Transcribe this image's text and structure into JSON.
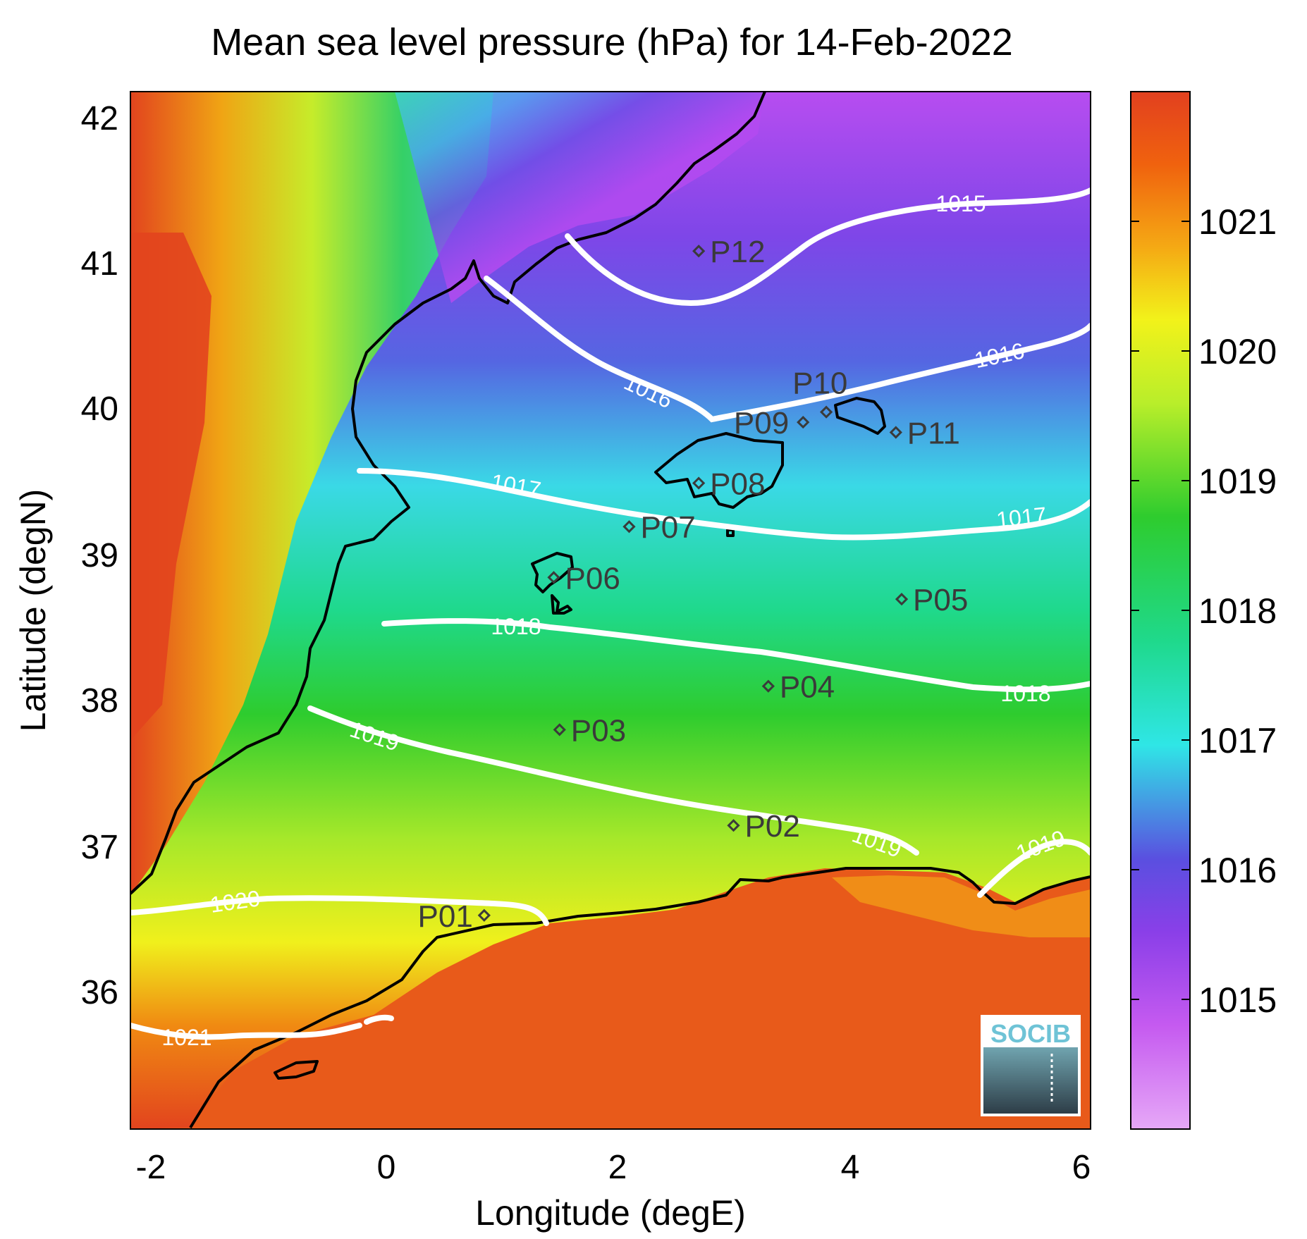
{
  "title": "Mean sea level pressure (hPa) for 14-Feb-2022",
  "xlabel": "Longitude (degE)",
  "ylabel": "Latitude (degN)",
  "x_ticks": [
    "-2",
    "0",
    "2",
    "4",
    "6"
  ],
  "y_ticks": [
    "42",
    "41",
    "40",
    "39",
    "38",
    "37",
    "36"
  ],
  "colorbar": {
    "min": 1014.0,
    "max": 1022.0,
    "ticks": [
      "1015",
      "1016",
      "1017",
      "1018",
      "1019",
      "1020",
      "1021"
    ],
    "colors": [
      "#e6a8f7",
      "#c55af0",
      "#8a3fe8",
      "#5a4fe0",
      "#2fe6e6",
      "#1fd98c",
      "#2ecc2e",
      "#b9ee2a",
      "#f2f21a",
      "#f5a914",
      "#f0620e",
      "#e2401f"
    ]
  },
  "contour_labels": [
    "1015",
    "1016",
    "1016",
    "1017",
    "1017",
    "1018",
    "1018",
    "1019",
    "1019",
    "1019",
    "1020",
    "1021"
  ],
  "stations": [
    {
      "name": "P01",
      "lon": 0.85,
      "lat": 36.52
    },
    {
      "name": "P02",
      "lon": 3.0,
      "lat": 37.14
    },
    {
      "name": "P03",
      "lon": 1.5,
      "lat": 37.8
    },
    {
      "name": "P04",
      "lon": 3.3,
      "lat": 38.1
    },
    {
      "name": "P05",
      "lon": 4.45,
      "lat": 38.7
    },
    {
      "name": "P06",
      "lon": 1.45,
      "lat": 38.85
    },
    {
      "name": "P07",
      "lon": 2.1,
      "lat": 39.2
    },
    {
      "name": "P08",
      "lon": 2.7,
      "lat": 39.5
    },
    {
      "name": "P09",
      "lon": 3.6,
      "lat": 39.92
    },
    {
      "name": "P10",
      "lon": 3.8,
      "lat": 39.99
    },
    {
      "name": "P11",
      "lon": 4.4,
      "lat": 39.85
    },
    {
      "name": "P12",
      "lon": 2.7,
      "lat": 41.1
    }
  ],
  "logo_text": "SOCIB"
}
